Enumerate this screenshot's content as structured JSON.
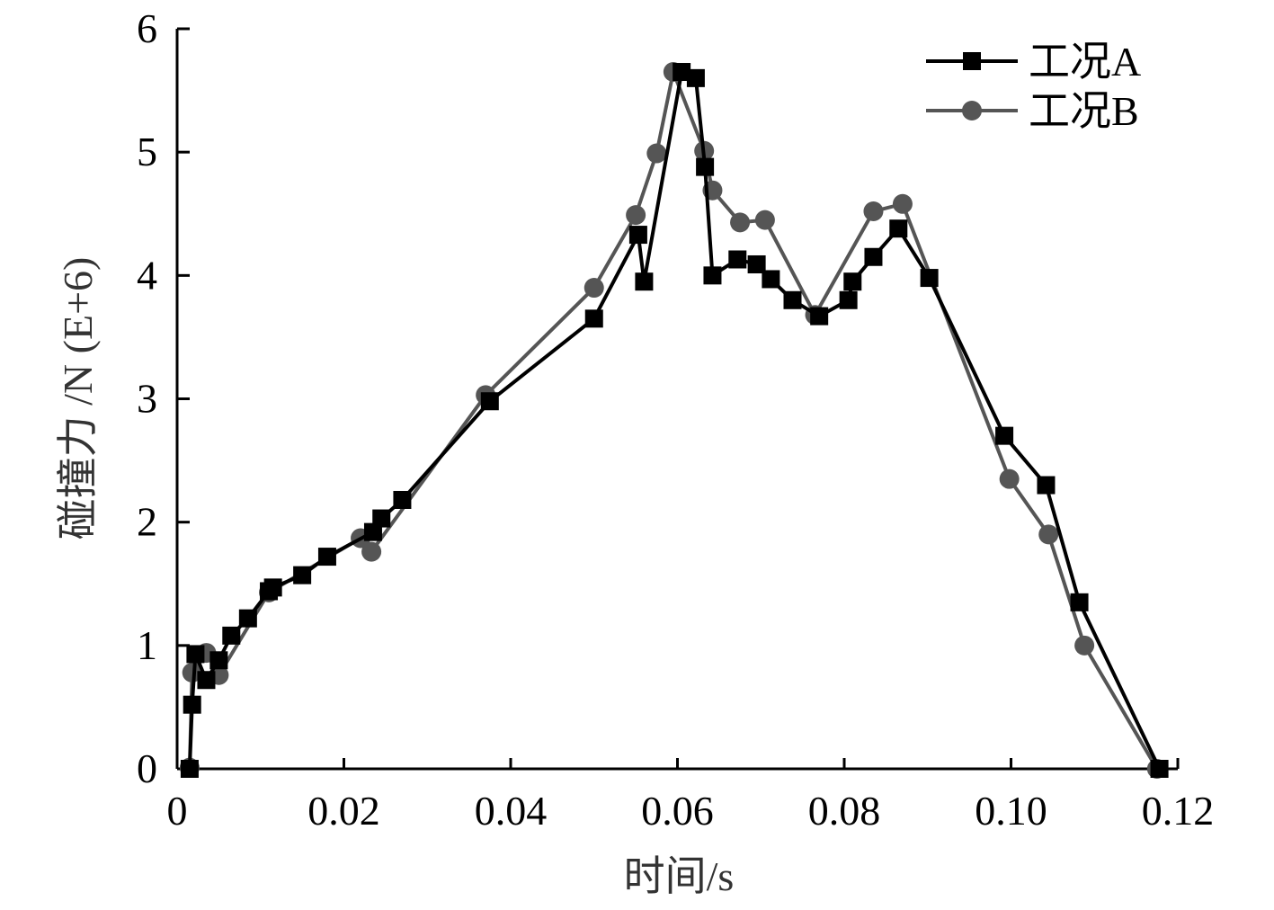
{
  "chart_data": {
    "type": "line",
    "title": "",
    "xlabel": "时间/s",
    "ylabel": "碰撞力 /N (E+6)",
    "xlim": [
      0,
      0.12
    ],
    "ylim": [
      0,
      6
    ],
    "x_ticks": [
      0,
      0.02,
      0.04,
      0.06,
      0.08,
      0.1,
      0.12
    ],
    "x_tick_labels": [
      "0",
      "0.02",
      "0.04",
      "0.06",
      "0.08",
      "0.10",
      "0.12"
    ],
    "y_ticks": [
      0,
      1,
      2,
      3,
      4,
      5,
      6
    ],
    "y_tick_labels": [
      "0",
      "1",
      "2",
      "3",
      "4",
      "5",
      "6"
    ],
    "grid": false,
    "legend_position": "top-right",
    "series": [
      {
        "name": "工况A",
        "marker": "square",
        "color": "#000000",
        "x": [
          0.0015,
          0.0018,
          0.0022,
          0.0035,
          0.005,
          0.0065,
          0.0085,
          0.011,
          0.0115,
          0.015,
          0.018,
          0.0235,
          0.0245,
          0.027,
          0.0375,
          0.05,
          0.0553,
          0.056,
          0.0605,
          0.0622,
          0.0633,
          0.0642,
          0.0672,
          0.0695,
          0.0712,
          0.0738,
          0.077,
          0.0805,
          0.081,
          0.0835,
          0.0865,
          0.0902,
          0.0992,
          0.1042,
          0.1082,
          0.1178
        ],
        "y": [
          0,
          0.52,
          0.93,
          0.72,
          0.88,
          1.08,
          1.22,
          1.44,
          1.47,
          1.57,
          1.72,
          1.92,
          2.03,
          2.18,
          2.98,
          3.65,
          4.33,
          3.95,
          5.65,
          5.6,
          4.88,
          4.0,
          4.13,
          4.09,
          3.97,
          3.8,
          3.67,
          3.8,
          3.95,
          4.15,
          4.38,
          3.98,
          2.7,
          2.3,
          1.35,
          0
        ]
      },
      {
        "name": "工况B",
        "marker": "circle",
        "color": "#555555",
        "x": [
          0.0015,
          0.0018,
          0.0035,
          0.005,
          0.011,
          0.022,
          0.0233,
          0.037,
          0.05,
          0.055,
          0.0575,
          0.0595,
          0.0632,
          0.0642,
          0.0675,
          0.0705,
          0.0765,
          0.0835,
          0.087,
          0.0998,
          0.1045,
          0.1088,
          0.1175
        ],
        "y": [
          0.01,
          0.78,
          0.94,
          0.76,
          1.43,
          1.87,
          1.76,
          3.03,
          3.9,
          4.49,
          4.99,
          5.65,
          5.01,
          4.69,
          4.43,
          4.45,
          3.68,
          4.52,
          4.58,
          2.35,
          1.9,
          1.0,
          0
        ]
      }
    ]
  }
}
